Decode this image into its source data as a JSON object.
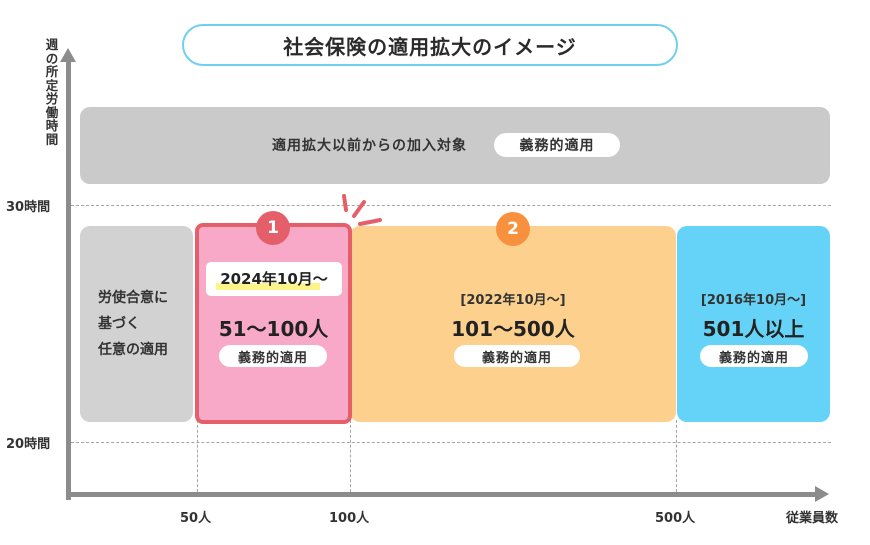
{
  "title": "社会保険の適用拡大のイメージ",
  "axes": {
    "y_label": [
      "週",
      "の",
      "所",
      "定",
      "労",
      "働",
      "時",
      "間"
    ],
    "x_label": "従業員数",
    "y_ticks": [
      "30時間",
      "20時間"
    ],
    "x_ticks": [
      "50人",
      "100人",
      "500人"
    ]
  },
  "top_band": {
    "label": "適用拡大以前からの加入対象",
    "badge": "義務的適用"
  },
  "left_box": {
    "lines": [
      "労使合意に",
      "基づく",
      "任意の適用"
    ]
  },
  "segments": [
    {
      "number": "1",
      "date": "2024年10月〜",
      "range": "51〜100人",
      "badge": "義務的適用",
      "color": "#f9a9c8",
      "border_color": "#e55f6b",
      "number_color": "#e55f6b"
    },
    {
      "number": "2",
      "date": "[2022年10月〜]",
      "range": "101〜500人",
      "badge": "義務的適用",
      "color": "#fdd08e",
      "number_color": "#f7913e"
    },
    {
      "date": "[2016年10月〜]",
      "range": "501人以上",
      "badge": "義務的適用",
      "color": "#65d3f7"
    }
  ],
  "colors": {
    "gray_band": "#cacaca",
    "gray_box": "#d2d2d2",
    "axis": "#8c8c8c",
    "accent_highlight": "#fff48a"
  }
}
